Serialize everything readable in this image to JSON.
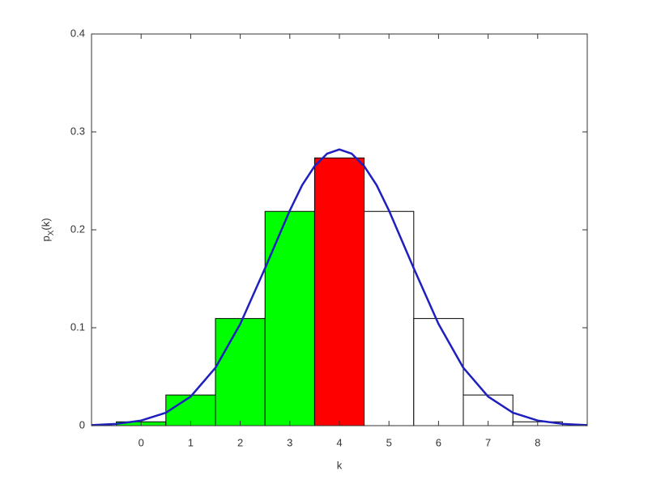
{
  "chart_data": {
    "type": "bar",
    "categories": [
      0,
      1,
      2,
      3,
      4,
      5,
      6,
      7,
      8
    ],
    "values": [
      0.0039,
      0.0313,
      0.1094,
      0.2188,
      0.2734,
      0.2188,
      0.1094,
      0.0313,
      0.0039
    ],
    "colors": [
      "#00ff00",
      "#00ff00",
      "#00ff00",
      "#00ff00",
      "#ff0000",
      "#ffffff",
      "#ffffff",
      "#ffffff",
      "#ffffff"
    ],
    "curve": {
      "color": "#1f1fbf",
      "x": [
        -1,
        -0.5,
        0,
        0.5,
        1,
        1.5,
        2,
        2.5,
        3,
        3.25,
        3.5,
        3.75,
        4,
        4.25,
        4.5,
        4.75,
        5,
        5.5,
        6,
        6.5,
        7,
        7.5,
        8,
        8.5,
        9
      ],
      "values": [
        0.0005,
        0.0018,
        0.0052,
        0.0132,
        0.0297,
        0.0591,
        0.1038,
        0.1607,
        0.2197,
        0.2457,
        0.265,
        0.2777,
        0.2821,
        0.2777,
        0.265,
        0.2457,
        0.2197,
        0.1607,
        0.1038,
        0.0591,
        0.0297,
        0.0132,
        0.0052,
        0.0018,
        0.0005
      ]
    },
    "xlabel": "k",
    "ylabel": {
      "base": "p",
      "sub": "X",
      "rest": "(k)"
    },
    "xlim": [
      -1,
      9
    ],
    "xticks": [
      0,
      1,
      2,
      3,
      4,
      5,
      6,
      7,
      8
    ],
    "ylim": [
      0,
      0.4
    ],
    "yticks": [
      0,
      0.1,
      0.2,
      0.3,
      0.4
    ]
  }
}
